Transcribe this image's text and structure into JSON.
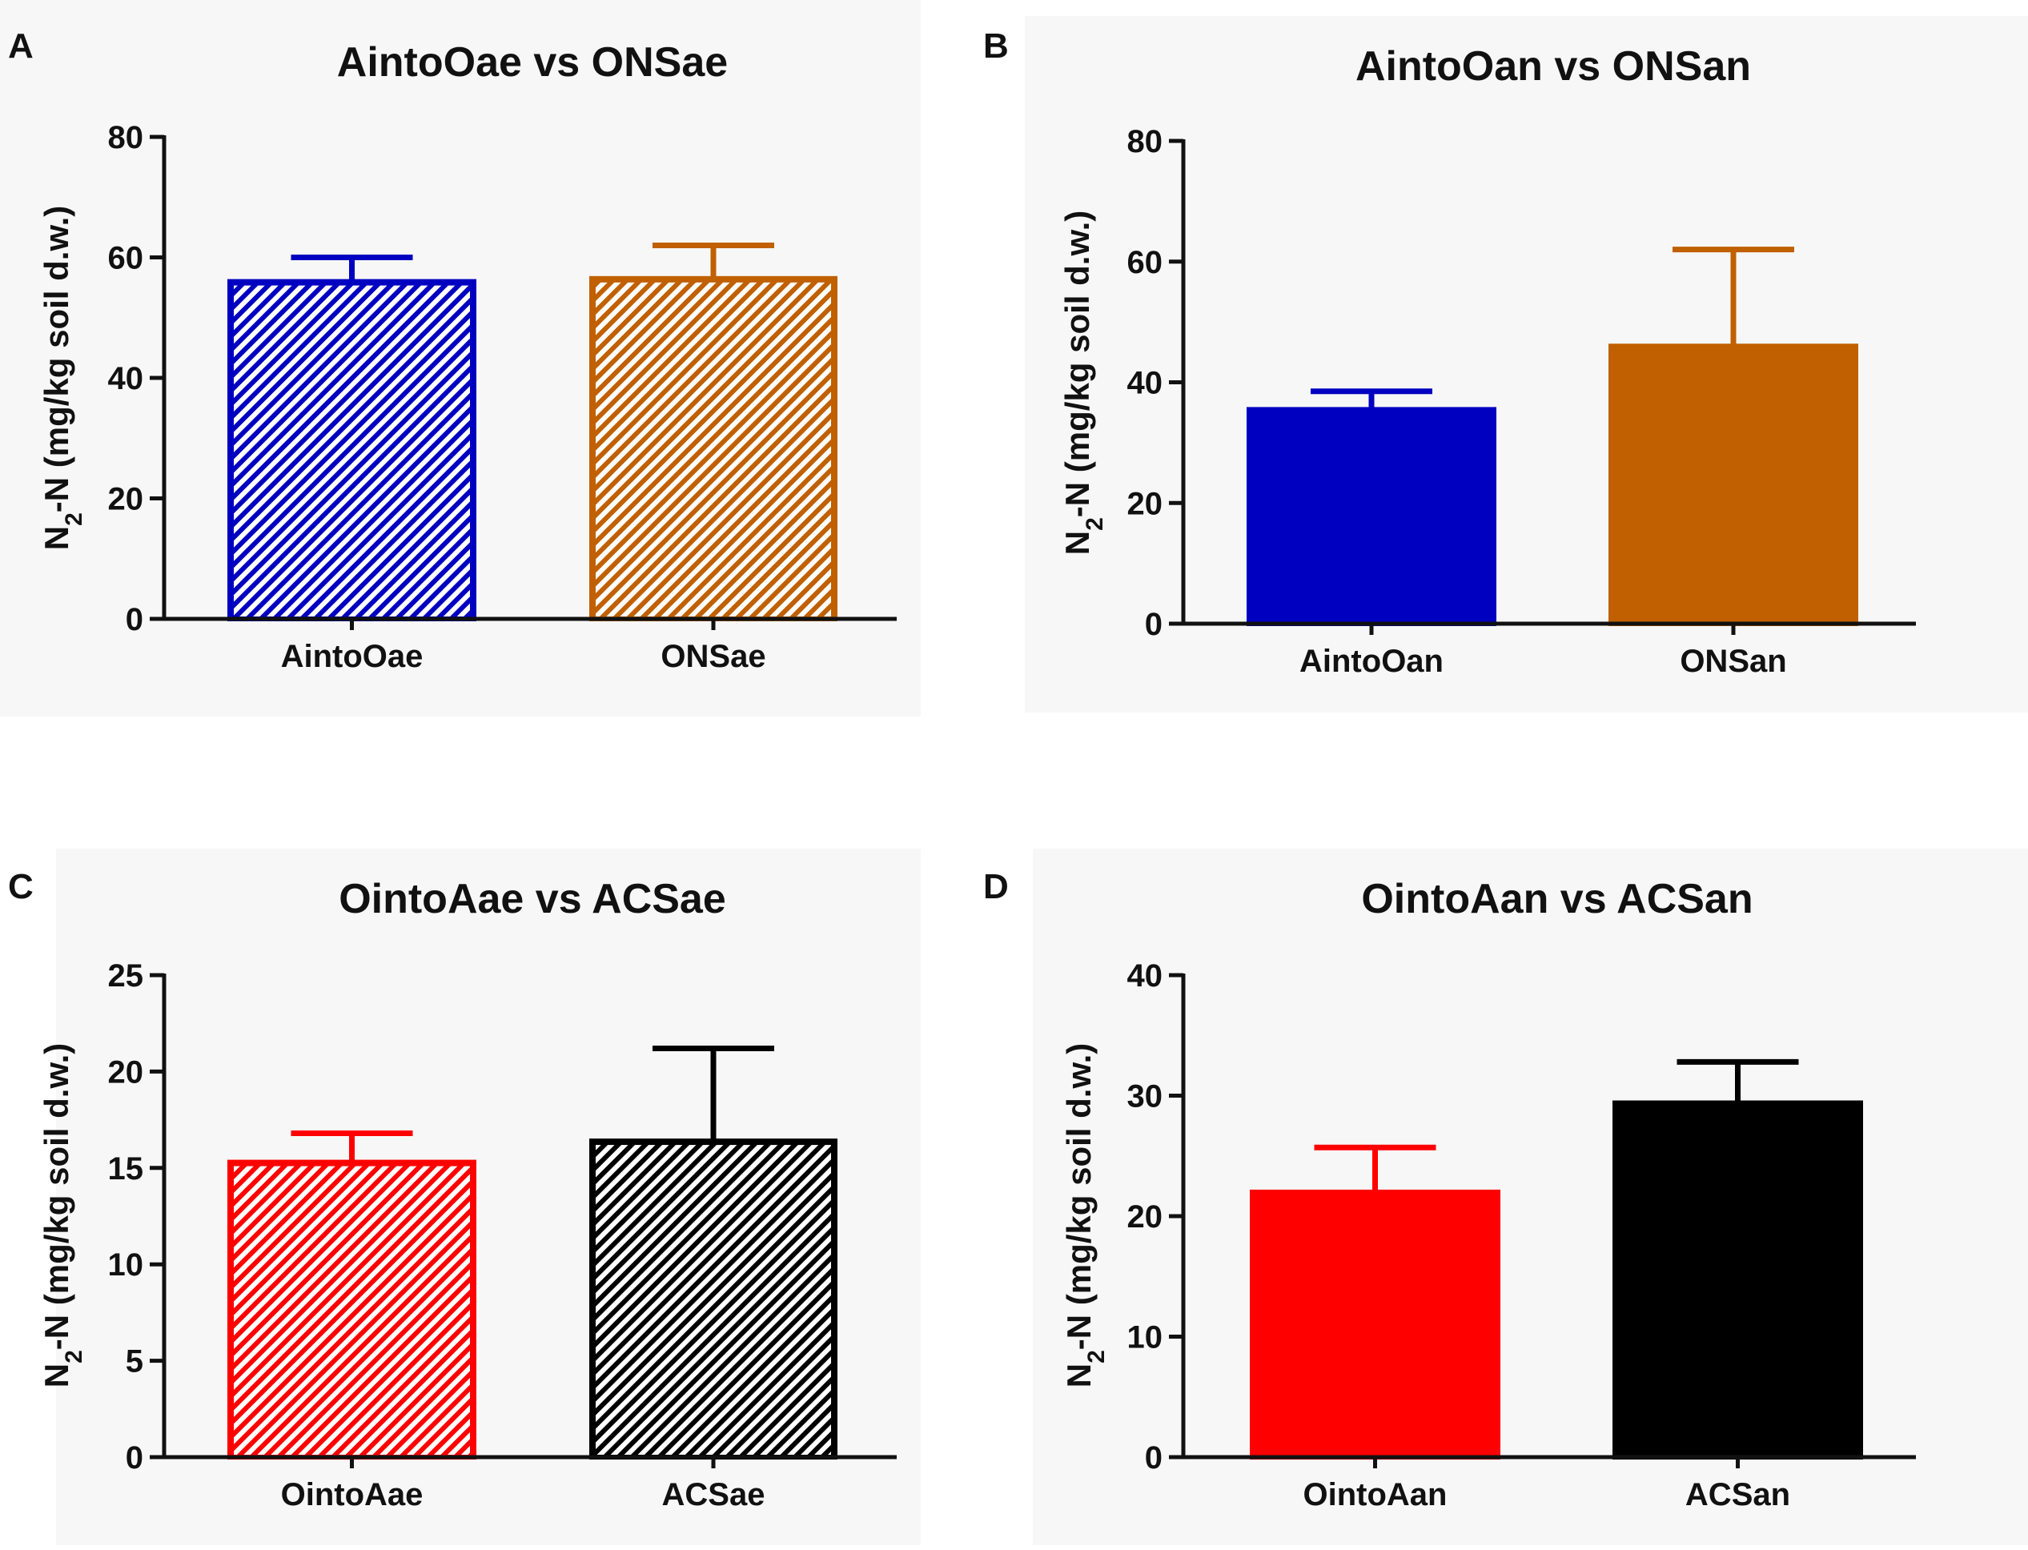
{
  "chart_data": [
    {
      "panel": "A",
      "type": "bar",
      "title": "AintoOae vs ONSae",
      "ylabel_main": "N",
      "ylabel_sub": "2",
      "ylabel_rest": "-N (mg/kg soil d.w.)",
      "ylim": [
        0,
        80
      ],
      "ticks": [
        0,
        20,
        40,
        60,
        80
      ],
      "categories": [
        "AintoOae",
        "ONSae"
      ],
      "values": [
        56,
        56.5
      ],
      "errors": [
        4,
        5.5
      ],
      "colors": [
        "#0000c0",
        "#c06000"
      ],
      "hatched": true
    },
    {
      "panel": "B",
      "type": "bar",
      "title": "AintoOan vs ONSan",
      "ylabel_main": "N",
      "ylabel_sub": "2",
      "ylabel_rest": "-N (mg/kg soil d.w.)",
      "ylim": [
        0,
        80
      ],
      "ticks": [
        0,
        20,
        40,
        60,
        80
      ],
      "categories": [
        "AintoOan",
        "ONSan"
      ],
      "values": [
        35.5,
        46
      ],
      "errors": [
        3,
        16
      ],
      "colors": [
        "#0000c0",
        "#c06000"
      ],
      "hatched": false
    },
    {
      "panel": "C",
      "type": "bar",
      "title": "OintoAae vs ACSae",
      "ylabel_main": "N",
      "ylabel_sub": "2",
      "ylabel_rest": "-N (mg/kg soil d.w.)",
      "ylim": [
        0,
        25
      ],
      "ticks": [
        0,
        5,
        10,
        15,
        20,
        25
      ],
      "categories": [
        "OintoAae",
        "ACSae"
      ],
      "values": [
        15.3,
        16.4
      ],
      "errors": [
        1.5,
        4.8
      ],
      "colors": [
        "#ff0000",
        "#000000"
      ],
      "hatched": true
    },
    {
      "panel": "D",
      "type": "bar",
      "title": "OintoAan vs ACSan",
      "ylabel_main": "N",
      "ylabel_sub": "2",
      "ylabel_rest": "-N (mg/kg soil d.w.)",
      "ylim": [
        0,
        40
      ],
      "ticks": [
        0,
        10,
        20,
        30,
        40
      ],
      "categories": [
        "OintoAan",
        "ACSan"
      ],
      "values": [
        22,
        29.4
      ],
      "errors": [
        3.7,
        3.4
      ],
      "colors": [
        "#ff0000",
        "#000000"
      ],
      "hatched": false
    }
  ]
}
